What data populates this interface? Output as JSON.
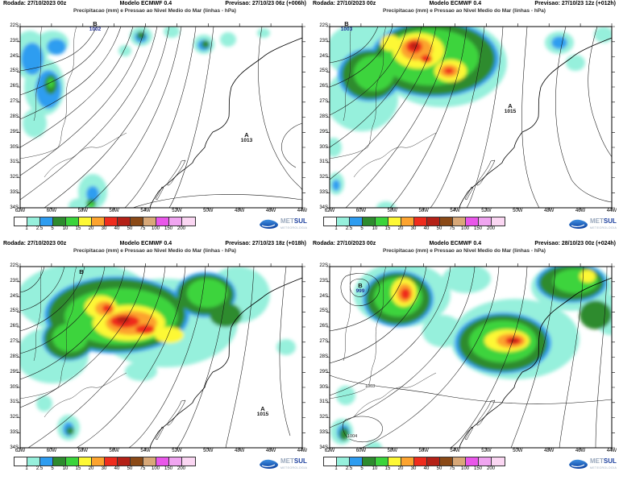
{
  "shared": {
    "run": "Rodada: 27/10/2023 00z",
    "model": "Modelo ECMWF 0.4",
    "title": "Precipitacao (mm) e Pressao ao Nivel Medio do Mar (linhas - hPa)",
    "lat_labels": [
      "22S",
      "23S",
      "24S",
      "25S",
      "26S",
      "27S",
      "28S",
      "29S",
      "30S",
      "31S",
      "32S",
      "33S",
      "34S"
    ],
    "lon_labels": [
      "62W",
      "60W",
      "58W",
      "56W",
      "54W",
      "52W",
      "50W",
      "48W",
      "46W",
      "44W"
    ],
    "colorbar": {
      "values": [
        "1",
        "2.5",
        "5",
        "10",
        "15",
        "20",
        "30",
        "40",
        "50",
        "75",
        "100",
        "150",
        "200"
      ],
      "colors": [
        "#ffffff",
        "#96f0dc",
        "#2e9df0",
        "#2e8b2e",
        "#3cd43c",
        "#fdf835",
        "#fca32e",
        "#ef2c1d",
        "#b42117",
        "#8b4a17",
        "#d8a878",
        "#e957e9",
        "#f0a5f0",
        "#fbd7f3"
      ]
    },
    "logo": {
      "met": "MET",
      "sul": "SUL",
      "tagline": "METEOROLOGIA"
    }
  },
  "panels": [
    {
      "forecast": "Previsao: 27/10/23 06z (+006h)",
      "low": {
        "letter": "B",
        "value": "1002"
      },
      "high": {
        "letter": "A",
        "value": "1013"
      }
    },
    {
      "forecast": "Previsao: 27/10/23 12z (+012h)",
      "low": {
        "letter": "B",
        "value": "1003"
      },
      "high": {
        "letter": "A",
        "value": "1015"
      }
    },
    {
      "forecast": "Previsao: 27/10/23 18z (+018h)",
      "low": {
        "letter": "B",
        "value": ""
      },
      "high": {
        "letter": "A",
        "value": "1015"
      }
    },
    {
      "forecast": "Previsao: 28/10/23 00z (+024h)",
      "low": {
        "letter": "B",
        "value": "999"
      },
      "contour_labels": [
        "1003",
        "1004"
      ]
    }
  ]
}
